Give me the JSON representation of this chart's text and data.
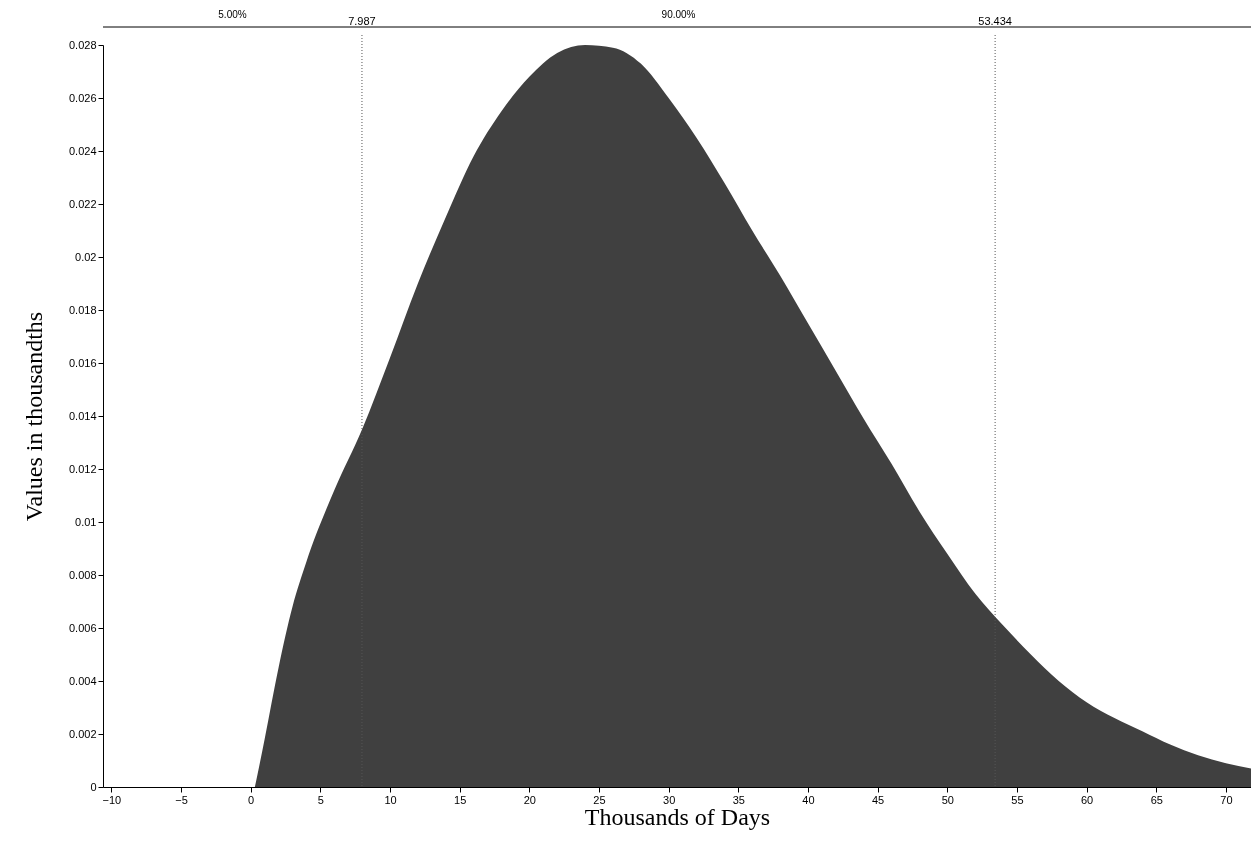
{
  "chart_data": {
    "type": "area",
    "xlabel": "Thousands of Days",
    "ylabel": "Values in thousandths",
    "x": [
      0.3,
      0.5,
      1,
      2,
      3,
      4,
      6,
      8,
      10,
      12,
      14,
      16,
      18,
      20,
      22,
      24,
      26,
      28,
      30,
      32,
      34,
      36,
      38,
      40,
      42,
      44,
      46,
      48,
      50,
      52,
      54,
      56,
      58,
      60,
      62,
      64,
      66,
      68,
      70,
      71.8
    ],
    "series": [
      {
        "color": "#404040",
        "values": [
          0,
          0.0005,
          0.0018,
          0.0045,
          0.0068,
          0.0085,
          0.0112,
          0.0135,
          0.0162,
          0.019,
          0.0215,
          0.0238,
          0.0255,
          0.0268,
          0.0277,
          0.028,
          0.0279,
          0.0273,
          0.026,
          0.0245,
          0.0228,
          0.021,
          0.0193,
          0.0175,
          0.0157,
          0.0139,
          0.0122,
          0.0104,
          0.0088,
          0.0073,
          0.0061,
          0.005,
          0.004,
          0.0032,
          0.0026,
          0.0021,
          0.0016,
          0.0012,
          0.0009,
          0.0007
        ]
      }
    ],
    "xlim": [
      -10.6,
      71.8
    ],
    "xticks": [
      -10,
      -5,
      0,
      5,
      10,
      15,
      20,
      25,
      30,
      35,
      40,
      45,
      50,
      55,
      60,
      65,
      70
    ],
    "ylim": [
      0,
      0.028
    ],
    "yticks": [
      0,
      0.002,
      0.004,
      0.006,
      0.008,
      0.01,
      0.012,
      0.014,
      0.016,
      0.018,
      0.02,
      0.022,
      0.024,
      0.026,
      0.028
    ],
    "ref_lines": [
      {
        "axis": "x",
        "value": 7.987,
        "label": "7.987",
        "line_style": "dotted"
      },
      {
        "axis": "x",
        "value": 53.434,
        "label": "53.434",
        "line_style": "dotted"
      }
    ],
    "annotations": [
      "5.00%",
      "90.00%"
    ],
    "grid": false
  }
}
